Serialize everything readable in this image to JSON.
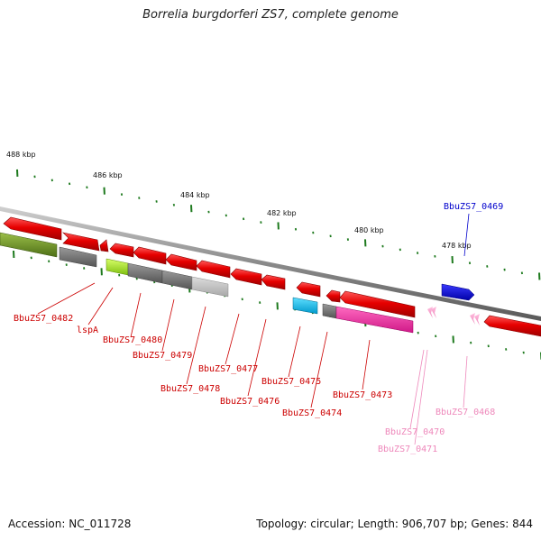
{
  "title": "Borrelia burgdorferi ZS7, complete genome",
  "footer": {
    "accession": "Accession: NC_011728",
    "topology": "Topology: circular; Length: 906,707 bp; Genes: 844"
  },
  "colors": {
    "backbone": "#8c8c8c",
    "red_gene": "#e00000",
    "tick": "#1e7a1e",
    "label_red": "#cc0000",
    "label_pink": "#ee88bb",
    "label_blue": "#0000cc"
  },
  "ruler": [
    "488 kbp",
    "486 kbp",
    "484 kbp",
    "482 kbp",
    "480 kbp",
    "478 kbp"
  ],
  "labels": [
    {
      "id": "BbuZS7_0482",
      "text": "BbuZS7_0482",
      "color": "red"
    },
    {
      "id": "lspA",
      "text": "lspA",
      "color": "red"
    },
    {
      "id": "BbuZS7_0480",
      "text": "BbuZS7_0480",
      "color": "red"
    },
    {
      "id": "BbuZS7_0479",
      "text": "BbuZS7_0479",
      "color": "red"
    },
    {
      "id": "BbuZS7_0478",
      "text": "BbuZS7_0478",
      "color": "red"
    },
    {
      "id": "BbuZS7_0477",
      "text": "BbuZS7_0477",
      "color": "red"
    },
    {
      "id": "BbuZS7_0476",
      "text": "BbuZS7_0476",
      "color": "red"
    },
    {
      "id": "BbuZS7_0475",
      "text": "BbuZS7_0475",
      "color": "red"
    },
    {
      "id": "BbuZS7_0474",
      "text": "BbuZS7_0474",
      "color": "red"
    },
    {
      "id": "BbuZS7_0473",
      "text": "BbuZS7_0473",
      "color": "red"
    },
    {
      "id": "BbuZS7_0470",
      "text": "BbuZS7_0470",
      "color": "pink"
    },
    {
      "id": "BbuZS7_0471",
      "text": "BbuZS7_0471",
      "color": "pink"
    },
    {
      "id": "BbuZS7_0468",
      "text": "BbuZS7_0468",
      "color": "pink"
    },
    {
      "id": "BbuZS7_0469",
      "text": "BbuZS7_0469",
      "color": "blue"
    }
  ]
}
